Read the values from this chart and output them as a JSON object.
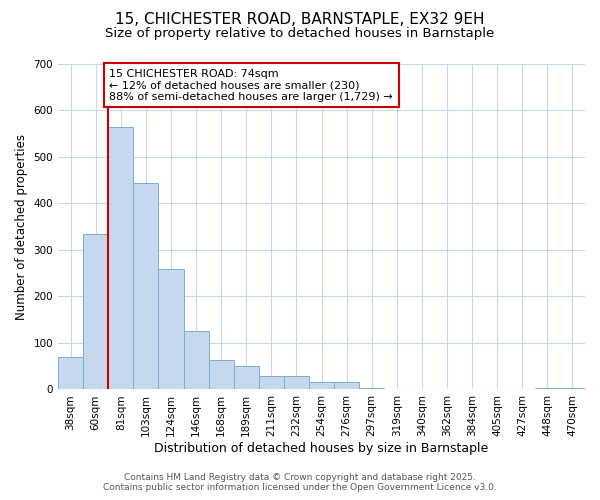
{
  "title_line1": "15, CHICHESTER ROAD, BARNSTAPLE, EX32 9EH",
  "title_line2": "Size of property relative to detached houses in Barnstaple",
  "xlabel": "Distribution of detached houses by size in Barnstaple",
  "ylabel": "Number of detached properties",
  "categories": [
    "38sqm",
    "60sqm",
    "81sqm",
    "103sqm",
    "124sqm",
    "146sqm",
    "168sqm",
    "189sqm",
    "211sqm",
    "232sqm",
    "254sqm",
    "276sqm",
    "297sqm",
    "319sqm",
    "340sqm",
    "362sqm",
    "384sqm",
    "405sqm",
    "427sqm",
    "448sqm",
    "470sqm"
  ],
  "values": [
    70,
    335,
    565,
    445,
    260,
    125,
    63,
    50,
    30,
    30,
    15,
    15,
    3,
    2,
    2,
    1,
    1,
    1,
    1,
    4,
    4
  ],
  "bar_color": "#c5d8ee",
  "bar_edgecolor": "#7aadd4",
  "vline_color": "#cc0000",
  "annotation_text": "15 CHICHESTER ROAD: 74sqm\n← 12% of detached houses are smaller (230)\n88% of semi-detached houses are larger (1,729) →",
  "annotation_box_edgecolor": "#cc0000",
  "annotation_box_facecolor": "#ffffff",
  "ylim": [
    0,
    700
  ],
  "yticks": [
    0,
    100,
    200,
    300,
    400,
    500,
    600,
    700
  ],
  "footer_line1": "Contains HM Land Registry data © Crown copyright and database right 2025.",
  "footer_line2": "Contains public sector information licensed under the Open Government Licence v3.0.",
  "background_color": "#ffffff",
  "plot_background_color": "#ffffff",
  "grid_color": "#c5d8ee",
  "title_fontsize": 11,
  "subtitle_fontsize": 9.5,
  "xlabel_fontsize": 9,
  "ylabel_fontsize": 8.5,
  "tick_fontsize": 7.5,
  "annotation_fontsize": 8,
  "footer_fontsize": 6.5
}
